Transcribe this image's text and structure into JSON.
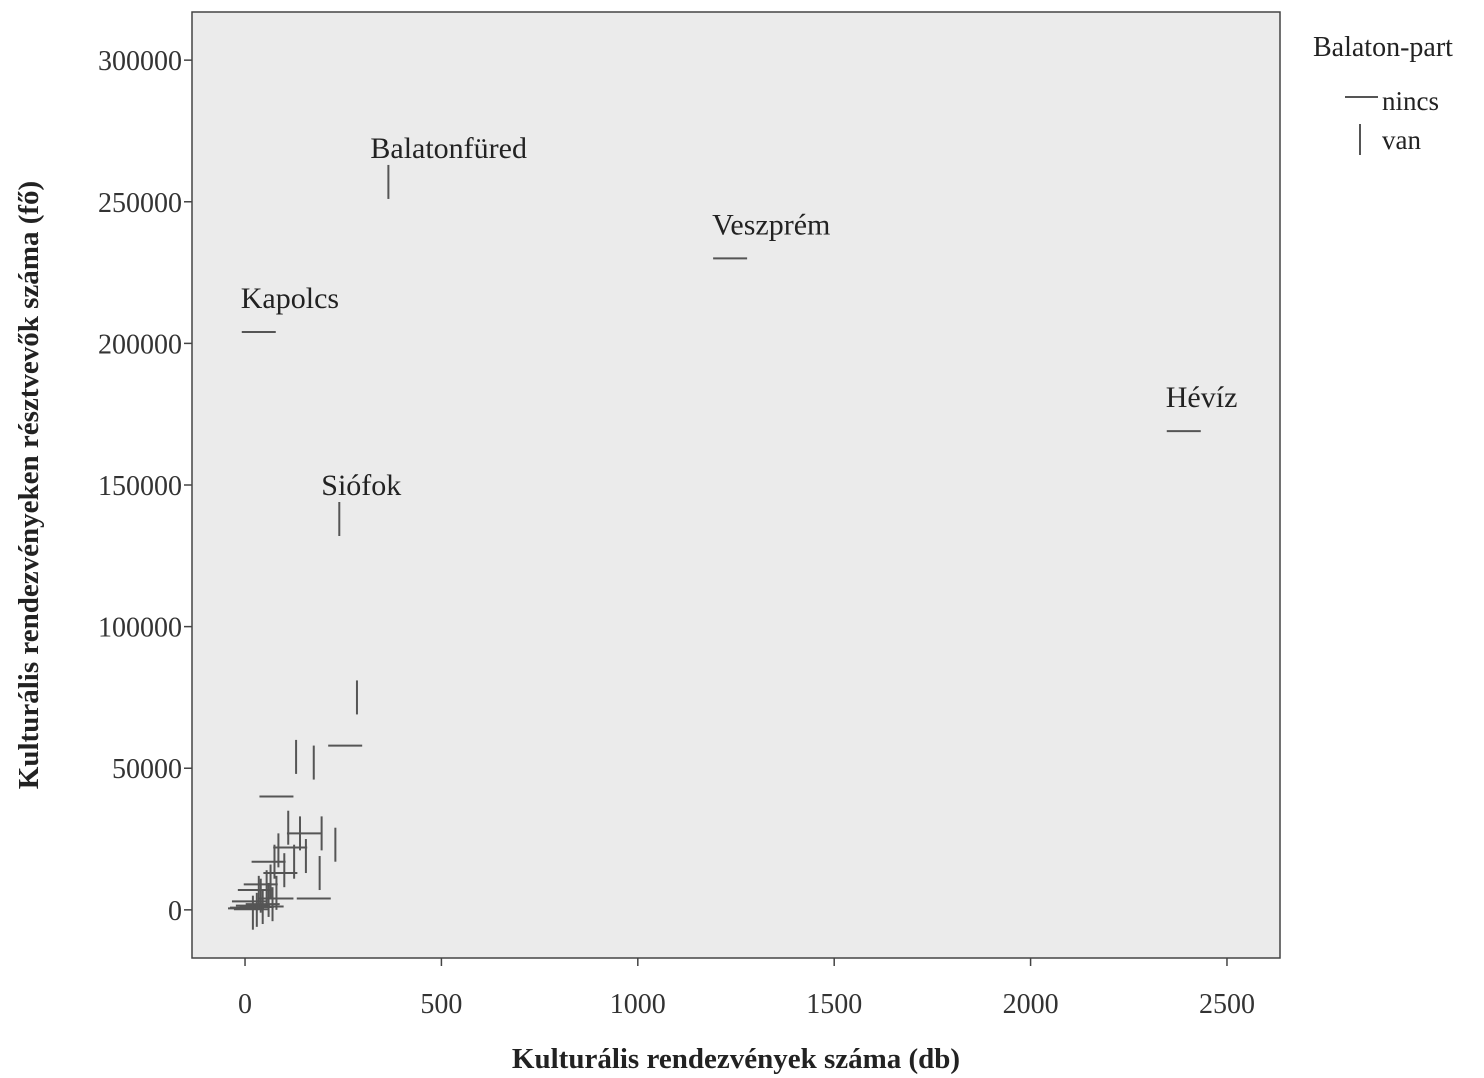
{
  "chart_data": {
    "type": "scatter",
    "xlabel": "Kulturális rendezvények száma (db)",
    "ylabel": "Kulturális rendezvényeken résztvevők száma (fő)",
    "xlim": [
      -135,
      2635
    ],
    "ylim": [
      -17000,
      317000
    ],
    "xticks": [
      0,
      500,
      1000,
      1500,
      2000,
      2500
    ],
    "yticks": [
      0,
      50000,
      100000,
      150000,
      200000,
      250000,
      300000
    ],
    "grid": false,
    "background": "#ebebeb",
    "legend": {
      "title": "Balaton-part",
      "position": "right",
      "entries": [
        {
          "label": "nincs",
          "marker": "horizontal-dash"
        },
        {
          "label": "van",
          "marker": "vertical-dash"
        }
      ]
    },
    "series": [
      {
        "name": "nincs",
        "marker": "horizontal-dash",
        "color": "#555555",
        "points": [
          {
            "x": 35,
            "y": 204000,
            "label": "Kapolcs"
          },
          {
            "x": 1235,
            "y": 230000,
            "label": "Veszprém"
          },
          {
            "x": 2390,
            "y": 169000,
            "label": "Hévíz"
          },
          {
            "x": 255,
            "y": 58000
          },
          {
            "x": 80,
            "y": 40000
          },
          {
            "x": 150,
            "y": 27000
          },
          {
            "x": 115,
            "y": 22000
          },
          {
            "x": 60,
            "y": 17000
          },
          {
            "x": 90,
            "y": 13000
          },
          {
            "x": 40,
            "y": 9000
          },
          {
            "x": 25,
            "y": 7000
          },
          {
            "x": 175,
            "y": 4000
          },
          {
            "x": 80,
            "y": 4000
          },
          {
            "x": 10,
            "y": 3000
          },
          {
            "x": 20,
            "y": 1500
          },
          {
            "x": 0,
            "y": 500
          },
          {
            "x": 45,
            "y": 2000
          },
          {
            "x": 5,
            "y": 800
          },
          {
            "x": 30,
            "y": 1000
          },
          {
            "x": 55,
            "y": 1200
          },
          {
            "x": 15,
            "y": 200
          }
        ]
      },
      {
        "name": "van",
        "marker": "vertical-dash",
        "color": "#555555",
        "points": [
          {
            "x": 365,
            "y": 257000,
            "label": "Balatonfüred"
          },
          {
            "x": 240,
            "y": 138000,
            "label": "Siófok"
          },
          {
            "x": 285,
            "y": 75000
          },
          {
            "x": 130,
            "y": 54000
          },
          {
            "x": 175,
            "y": 52000
          },
          {
            "x": 230,
            "y": 23000
          },
          {
            "x": 195,
            "y": 27000
          },
          {
            "x": 190,
            "y": 13000
          },
          {
            "x": 140,
            "y": 27000
          },
          {
            "x": 155,
            "y": 19000
          },
          {
            "x": 110,
            "y": 29000
          },
          {
            "x": 125,
            "y": 17000
          },
          {
            "x": 85,
            "y": 21000
          },
          {
            "x": 100,
            "y": 14000
          },
          {
            "x": 75,
            "y": 17000
          },
          {
            "x": 65,
            "y": 10000
          },
          {
            "x": 80,
            "y": 6000
          },
          {
            "x": 55,
            "y": 8000
          },
          {
            "x": 40,
            "y": 5000
          },
          {
            "x": 70,
            "y": 2000
          },
          {
            "x": 45,
            "y": 1000
          },
          {
            "x": 30,
            "y": 0
          },
          {
            "x": 20,
            "y": -1000
          },
          {
            "x": 60,
            "y": 3500
          },
          {
            "x": 35,
            "y": 6000
          }
        ]
      }
    ]
  }
}
